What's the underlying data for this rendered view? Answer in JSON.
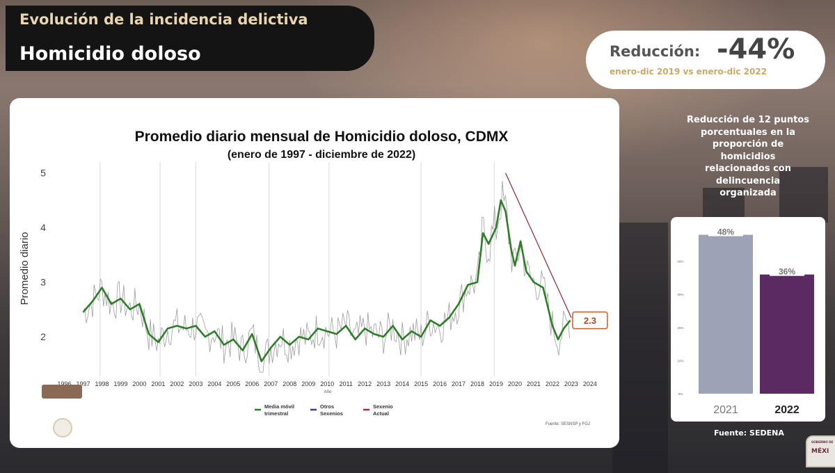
{
  "header": {
    "kicker": "Evolución de la incidencia delictiva",
    "title": "Homicidio doloso"
  },
  "reduction": {
    "label": "Reducción:",
    "value": "-44%",
    "subtitle": "enero-dic 2019 vs enero-dic 2022"
  },
  "side_panel": {
    "title_lines": [
      "Reducción de 12 puntos",
      "porcentuales en la",
      "proporción de",
      "homicidios",
      "relacionados con",
      "delincuencia",
      "organizada"
    ],
    "source": "Fuente: SEDENA"
  },
  "corner_logo": {
    "top_text": "GOBIERNO DE",
    "text": "MÉXI"
  },
  "colors": {
    "moving_average": "#2f7d2a",
    "raw_series": "#8c8c8c",
    "otros_sexenios": "#3b3c8c",
    "sexenio_actual": "#a0303a",
    "trend_line": "#8a2433",
    "callout_border": "#c55a2a",
    "bar_2021": "#9da2b6",
    "bar_2022": "#5c2a63"
  },
  "chart_data": [
    {
      "type": "line",
      "title": "Promedio diario mensual de Homicidio doloso, CDMX",
      "subtitle": "(enero de 1997 - diciembre de 2022)",
      "xlabel": "Año",
      "ylabel": "Promedio diario",
      "xlim": [
        1996.5,
        2024.3
      ],
      "ylim": [
        1.3,
        5.2
      ],
      "yticks": [
        2,
        3,
        4,
        5
      ],
      "xticks": [
        "1996",
        "1997",
        "1998",
        "1999",
        "2000",
        "2001",
        "2002",
        "2003",
        "2004",
        "2005",
        "2006",
        "2007",
        "2008",
        "2009",
        "2010",
        "2011",
        "2012",
        "2013",
        "2014",
        "2015",
        "2016",
        "2017",
        "2018",
        "2019",
        "2020",
        "2021",
        "2022",
        "2023",
        "2024"
      ],
      "grid": false,
      "legend": "bottom-center",
      "legend_items": [
        "Media móvil trimestral",
        "Otros Sexenios",
        "Sexenio Actual"
      ],
      "source": "Fuente: SESNSP y FGJ",
      "annotation": {
        "text": "2.3",
        "x": 2023.0,
        "y": 2.3
      },
      "trend_line": {
        "from": {
          "x": 2019.5,
          "y": 5.0
        },
        "to": {
          "x": 2023.0,
          "y": 2.35
        }
      },
      "vertical_markers": [
        1997.9,
        2001.1,
        2003.0,
        2006.9,
        2010.1,
        2015.0,
        2018.9
      ],
      "moving_average": {
        "name": "Media móvil trimestral",
        "points": [
          {
            "x": 1997.0,
            "y": 2.45
          },
          {
            "x": 1997.5,
            "y": 2.65
          },
          {
            "x": 1998.0,
            "y": 2.9
          },
          {
            "x": 1998.5,
            "y": 2.6
          },
          {
            "x": 1999.0,
            "y": 2.7
          },
          {
            "x": 1999.5,
            "y": 2.5
          },
          {
            "x": 2000.0,
            "y": 2.6
          },
          {
            "x": 2000.5,
            "y": 2.05
          },
          {
            "x": 2001.0,
            "y": 1.9
          },
          {
            "x": 2001.5,
            "y": 2.15
          },
          {
            "x": 2002.0,
            "y": 2.2
          },
          {
            "x": 2002.5,
            "y": 2.15
          },
          {
            "x": 2003.0,
            "y": 2.2
          },
          {
            "x": 2003.5,
            "y": 2.0
          },
          {
            "x": 2004.0,
            "y": 2.1
          },
          {
            "x": 2004.5,
            "y": 1.85
          },
          {
            "x": 2005.0,
            "y": 1.95
          },
          {
            "x": 2005.5,
            "y": 1.75
          },
          {
            "x": 2006.0,
            "y": 2.05
          },
          {
            "x": 2006.5,
            "y": 1.55
          },
          {
            "x": 2007.0,
            "y": 1.8
          },
          {
            "x": 2007.5,
            "y": 2.0
          },
          {
            "x": 2008.0,
            "y": 1.85
          },
          {
            "x": 2008.5,
            "y": 2.0
          },
          {
            "x": 2009.0,
            "y": 1.95
          },
          {
            "x": 2009.5,
            "y": 2.15
          },
          {
            "x": 2010.0,
            "y": 2.1
          },
          {
            "x": 2010.5,
            "y": 2.05
          },
          {
            "x": 2011.0,
            "y": 2.2
          },
          {
            "x": 2011.5,
            "y": 1.95
          },
          {
            "x": 2012.0,
            "y": 2.15
          },
          {
            "x": 2012.5,
            "y": 2.05
          },
          {
            "x": 2013.0,
            "y": 2.0
          },
          {
            "x": 2013.5,
            "y": 2.2
          },
          {
            "x": 2014.0,
            "y": 1.95
          },
          {
            "x": 2014.5,
            "y": 2.1
          },
          {
            "x": 2015.0,
            "y": 2.0
          },
          {
            "x": 2015.5,
            "y": 2.3
          },
          {
            "x": 2016.0,
            "y": 2.2
          },
          {
            "x": 2016.5,
            "y": 2.35
          },
          {
            "x": 2017.0,
            "y": 2.6
          },
          {
            "x": 2017.5,
            "y": 2.95
          },
          {
            "x": 2018.0,
            "y": 3.0
          },
          {
            "x": 2018.3,
            "y": 3.9
          },
          {
            "x": 2018.6,
            "y": 3.7
          },
          {
            "x": 2019.0,
            "y": 4.0
          },
          {
            "x": 2019.25,
            "y": 4.5
          },
          {
            "x": 2019.5,
            "y": 4.3
          },
          {
            "x": 2019.8,
            "y": 3.6
          },
          {
            "x": 2020.0,
            "y": 3.3
          },
          {
            "x": 2020.3,
            "y": 3.75
          },
          {
            "x": 2020.6,
            "y": 3.2
          },
          {
            "x": 2021.0,
            "y": 3.0
          },
          {
            "x": 2021.5,
            "y": 2.9
          },
          {
            "x": 2022.0,
            "y": 2.2
          },
          {
            "x": 2022.3,
            "y": 1.95
          },
          {
            "x": 2022.6,
            "y": 2.15
          },
          {
            "x": 2022.95,
            "y": 2.3
          }
        ]
      }
    },
    {
      "type": "bar",
      "categories": [
        "2021",
        "2022"
      ],
      "values": [
        48,
        36
      ],
      "data_labels": [
        "48%",
        "36%"
      ],
      "ylim": [
        0,
        50
      ],
      "yticks": [
        "0%",
        "10%",
        "20%",
        "30%",
        "40%"
      ]
    }
  ]
}
